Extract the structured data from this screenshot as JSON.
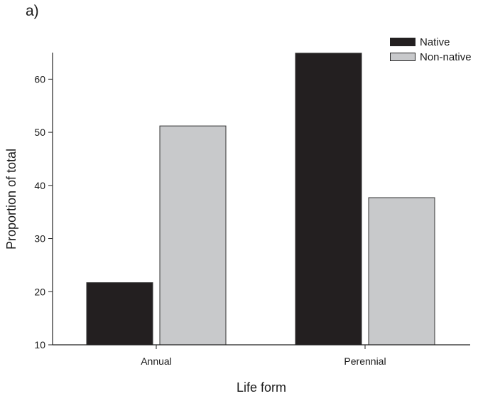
{
  "panel_label": "a)",
  "colors": {
    "native": "#231f20",
    "non_native": "#c8c9cb",
    "axis": "#222222",
    "bar_edge": "#333333"
  },
  "chart_data": {
    "type": "bar",
    "categories": [
      "Annual",
      "Perennial"
    ],
    "series": [
      {
        "name": "Native",
        "values": [
          21.7,
          64.9
        ]
      },
      {
        "name": "Non-native",
        "values": [
          51.2,
          37.7
        ]
      }
    ],
    "xlabel": "Life form",
    "ylabel": "Proportion of total",
    "ylim": [
      10,
      65
    ],
    "yticks": [
      10,
      20,
      30,
      40,
      50,
      60
    ],
    "grid": false,
    "legend_position": "top-right"
  }
}
